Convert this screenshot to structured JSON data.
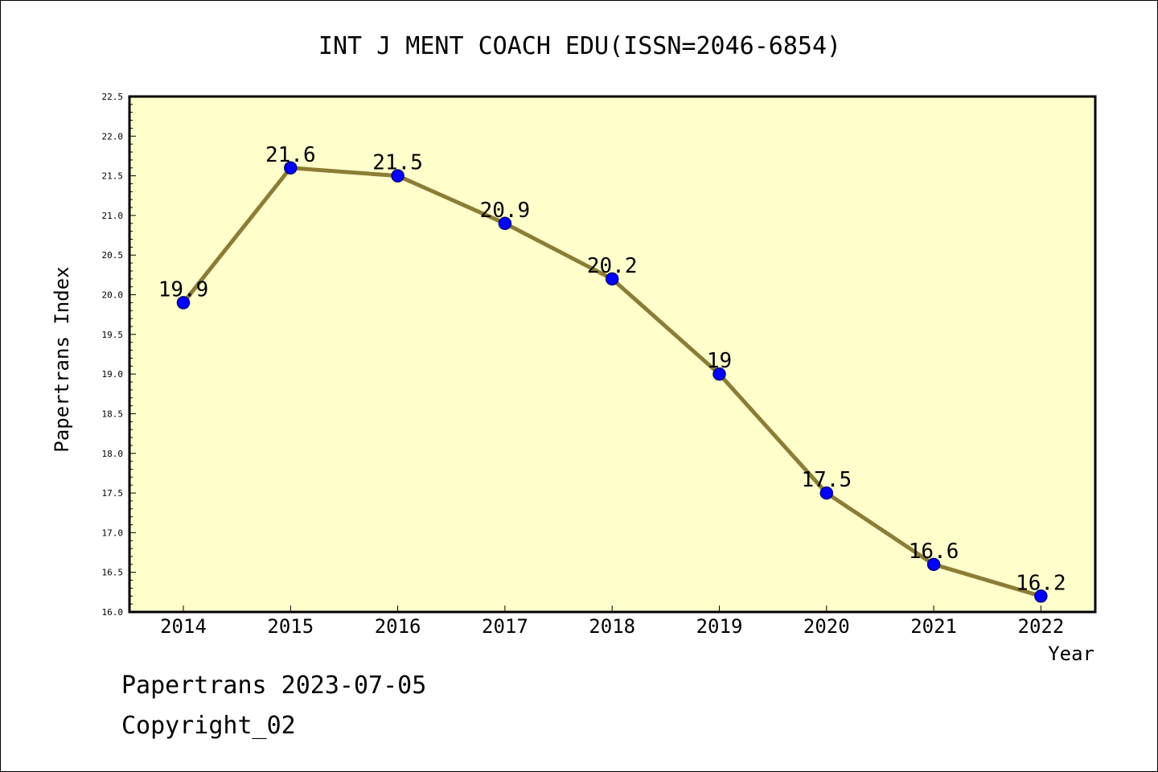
{
  "footer": {
    "line1": "Papertrans 2023-07-05",
    "line2": "Copyright_02"
  },
  "colors": {
    "plot_background": "#ffffcc",
    "line": "#8b7d35",
    "marker_fill": "#0000ff",
    "marker_edge": "#000080"
  },
  "chart_data": {
    "type": "line",
    "title": "INT J MENT COACH EDU(ISSN=2046-6854)",
    "xlabel": "Year",
    "ylabel": "Papertrans Index",
    "categories": [
      "2014",
      "2015",
      "2016",
      "2017",
      "2018",
      "2019",
      "2020",
      "2021",
      "2022"
    ],
    "values": [
      19.9,
      21.6,
      21.5,
      20.9,
      20.2,
      19,
      17.5,
      16.6,
      16.2
    ],
    "data_labels": [
      "19.9",
      "21.6",
      "21.5",
      "20.9",
      "20.2",
      "19",
      "17.5",
      "16.6",
      "16.2"
    ],
    "ylim": [
      16.0,
      22.5
    ],
    "yticks": [
      "16.0",
      "16.5",
      "17.0",
      "17.5",
      "18.0",
      "18.5",
      "19.0",
      "19.5",
      "20.0",
      "20.5",
      "21.0",
      "21.5",
      "22.0",
      "22.5"
    ],
    "grid": false,
    "legend": "none"
  }
}
